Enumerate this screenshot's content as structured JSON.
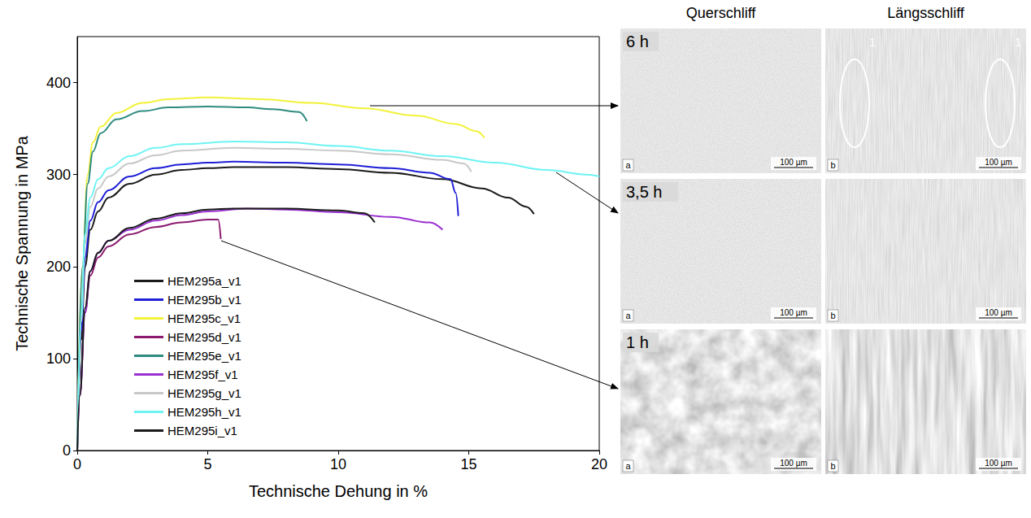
{
  "chart_data": {
    "type": "line",
    "xlabel": "Technische Dehung in %",
    "ylabel": "Technische Spannung in MPa",
    "xlim": [
      0,
      20
    ],
    "xticks": [
      0,
      5,
      10,
      15,
      20
    ],
    "ylim": [
      0,
      450
    ],
    "yticks": [
      0,
      100,
      200,
      300,
      400
    ],
    "grid": false,
    "legend": "lower left",
    "series": [
      {
        "name": "HEM295a_v1",
        "color": "#1a1a1a",
        "x": [
          0,
          0.15,
          0.3,
          0.5,
          0.8,
          1.2,
          2,
          3,
          4,
          5,
          6,
          8,
          10,
          12,
          14,
          15.5,
          16.5,
          17.2,
          17.5
        ],
        "values": [
          0,
          120,
          200,
          240,
          260,
          275,
          290,
          300,
          305,
          307,
          308,
          308,
          306,
          302,
          295,
          285,
          275,
          265,
          257
        ]
      },
      {
        "name": "HEM295b_v1",
        "color": "#1f1fd6",
        "x": [
          0,
          0.15,
          0.3,
          0.5,
          0.8,
          1.2,
          2,
          3,
          4,
          5,
          6,
          8,
          10,
          12,
          13.5,
          14.3,
          14.5,
          14.6
        ],
        "values": [
          0,
          130,
          210,
          250,
          270,
          283,
          298,
          307,
          311,
          313,
          314,
          313,
          311,
          307,
          302,
          295,
          280,
          255
        ]
      },
      {
        "name": "HEM295c_v1",
        "color": "#f2f23a",
        "x": [
          0,
          0.2,
          0.4,
          0.6,
          0.9,
          1.5,
          2.5,
          3.5,
          5,
          7,
          9,
          11,
          13,
          14.5,
          15.3,
          15.6
        ],
        "values": [
          0,
          200,
          300,
          335,
          352,
          367,
          378,
          382,
          384,
          382,
          378,
          372,
          364,
          355,
          347,
          340
        ]
      },
      {
        "name": "HEM295d_v1",
        "color": "#8b1a6e",
        "x": [
          0,
          0.1,
          0.3,
          0.5,
          0.8,
          1.2,
          2,
          3,
          4,
          5,
          5.4,
          5.5
        ],
        "values": [
          0,
          60,
          150,
          190,
          210,
          222,
          235,
          243,
          248,
          251,
          251,
          230
        ]
      },
      {
        "name": "HEM295e_v1",
        "color": "#2e8b7f",
        "x": [
          0,
          0.2,
          0.4,
          0.6,
          0.9,
          1.5,
          2.5,
          3.5,
          5,
          6.5,
          7.5,
          8.5,
          8.8
        ],
        "values": [
          0,
          200,
          290,
          325,
          345,
          360,
          369,
          373,
          374,
          373,
          371,
          368,
          358
        ]
      },
      {
        "name": "HEM295f_v1",
        "color": "#9a30d0",
        "x": [
          0,
          0.1,
          0.3,
          0.5,
          0.8,
          1.2,
          2,
          3,
          4,
          5,
          6.5,
          8,
          10,
          12,
          13.5,
          14
        ],
        "values": [
          0,
          60,
          150,
          195,
          215,
          228,
          240,
          250,
          256,
          260,
          263,
          262,
          259,
          254,
          248,
          240
        ]
      },
      {
        "name": "HEM295g_v1",
        "color": "#c8c8c8",
        "x": [
          0,
          0.15,
          0.3,
          0.5,
          0.8,
          1.2,
          2,
          3,
          4,
          6,
          8,
          10,
          12,
          14,
          14.8,
          15.1
        ],
        "values": [
          0,
          140,
          225,
          265,
          285,
          298,
          312,
          321,
          326,
          329,
          328,
          326,
          322,
          316,
          312,
          303
        ]
      },
      {
        "name": "HEM295h_v1",
        "color": "#6ff3f3",
        "x": [
          0,
          0.15,
          0.3,
          0.5,
          0.8,
          1.2,
          2,
          3,
          4,
          6,
          8,
          10,
          12,
          14,
          16,
          18,
          19.5,
          20
        ],
        "values": [
          0,
          145,
          235,
          275,
          295,
          307,
          320,
          329,
          333,
          336,
          335,
          331,
          326,
          320,
          313,
          305,
          300,
          298
        ]
      },
      {
        "name": "HEM295i_v1",
        "color": "#1a1a1a",
        "x": [
          0,
          0.1,
          0.3,
          0.5,
          0.8,
          1.2,
          2,
          3,
          4,
          5,
          6,
          8,
          10,
          11,
          11.4
        ],
        "values": [
          0,
          60,
          155,
          195,
          215,
          228,
          242,
          252,
          258,
          262,
          263,
          263,
          261,
          258,
          248
        ]
      }
    ]
  },
  "micrographs": {
    "columns": [
      "Querschliff",
      "Längsschliff"
    ],
    "rows": [
      {
        "time": "6 h",
        "panels": [
          {
            "letter": "a",
            "scale_bar": "100 µm"
          },
          {
            "letter": "b",
            "scale_bar": "100 µm",
            "marks": [
              "1",
              "1"
            ]
          }
        ]
      },
      {
        "time": "3,5 h",
        "panels": [
          {
            "letter": "a",
            "scale_bar": "100 µm"
          },
          {
            "letter": "b",
            "scale_bar": "100 µm"
          }
        ]
      },
      {
        "time": "1 h",
        "panels": [
          {
            "letter": "a",
            "scale_bar": "100 µm"
          },
          {
            "letter": "b",
            "scale_bar": "100 µm"
          }
        ]
      }
    ]
  }
}
